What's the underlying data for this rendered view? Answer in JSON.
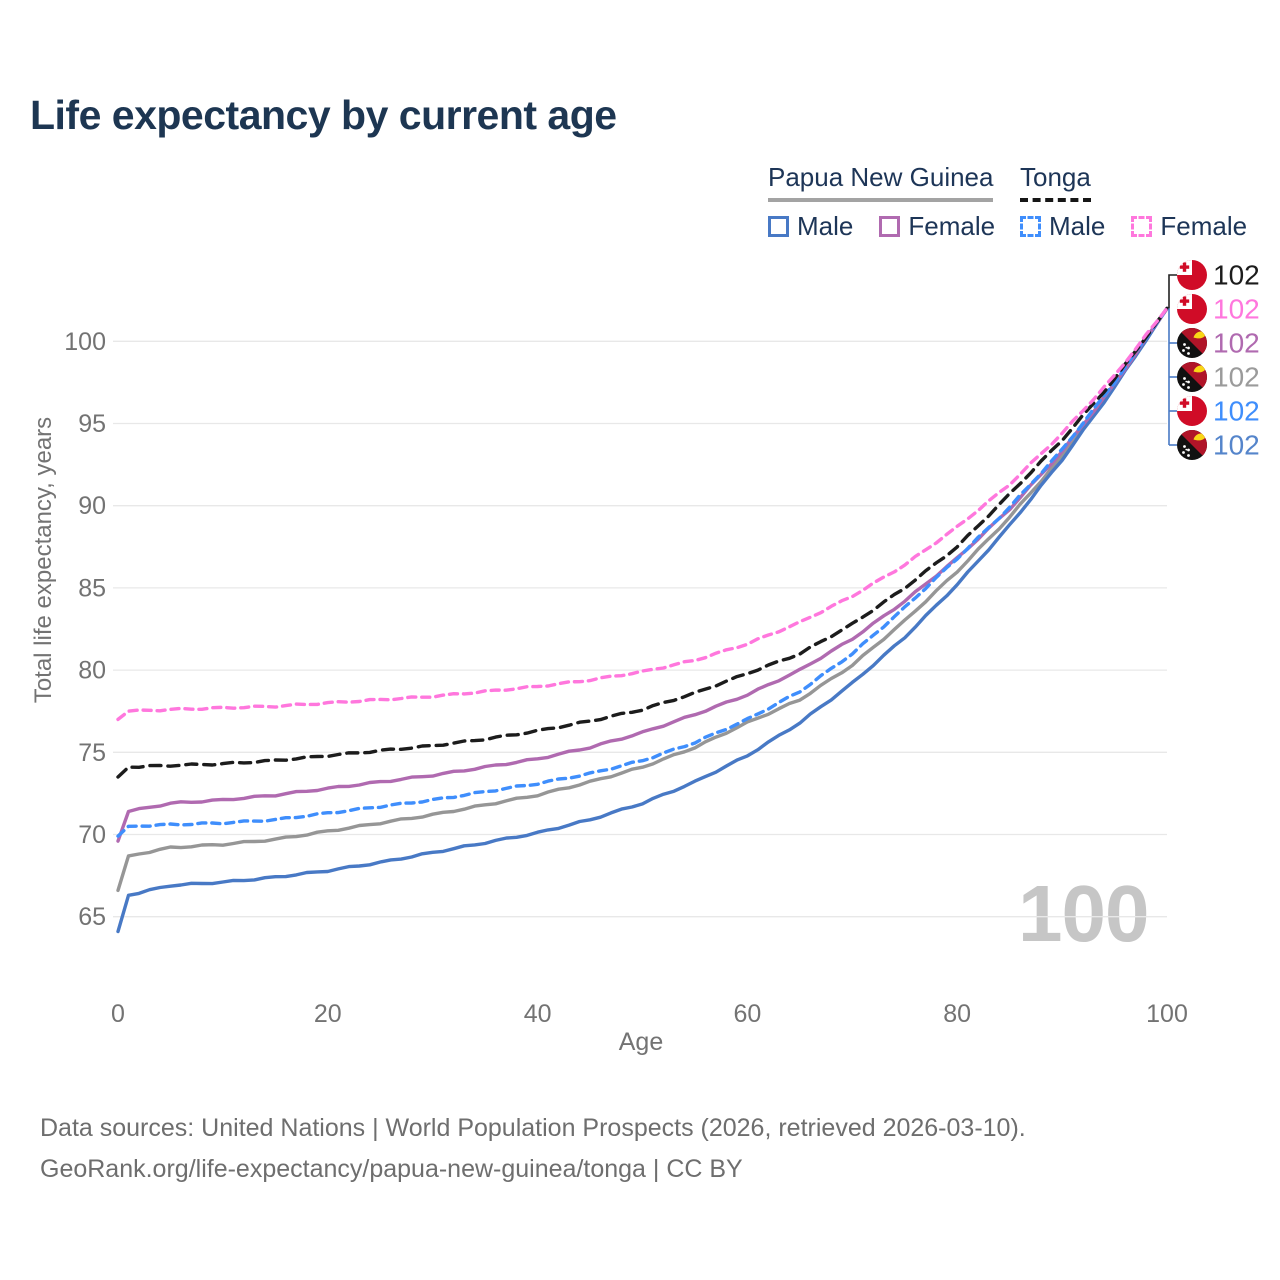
{
  "title": "Life expectancy by current age",
  "watermark": "100",
  "footer": {
    "line1": "Data sources: United Nations | World Population Prospects (2026, retrieved 2026-03-10).",
    "line2": "GeoRank.org/life-expectancy/papua-new-guinea/tonga | CC BY"
  },
  "legend": {
    "groups": [
      {
        "label": "Papua New Guinea",
        "line_style": "solid",
        "underline_color": "#a3a3a3",
        "items": [
          {
            "label": "Male",
            "color": "#4879c5",
            "dashed": false
          },
          {
            "label": "Female",
            "color": "#b06ab0",
            "dashed": false
          }
        ]
      },
      {
        "label": "Tonga",
        "line_style": "dashed",
        "underline_color": "#161616",
        "items": [
          {
            "label": "Male",
            "color": "#3f8efc",
            "dashed": true
          },
          {
            "label": "Female",
            "color": "#ff77dd",
            "dashed": true
          }
        ]
      }
    ]
  },
  "chart_data": {
    "type": "line",
    "title": "Life expectancy by current age",
    "xlabel": "Age",
    "ylabel": "Total life expectancy, years",
    "xlim": [
      0,
      100
    ],
    "ylim": [
      63.5,
      103
    ],
    "x_ticks": [
      0,
      20,
      40,
      60,
      80,
      100
    ],
    "y_ticks": [
      65,
      70,
      75,
      80,
      85,
      90,
      95,
      100
    ],
    "grid": "horizontal",
    "legend_position": "top-right",
    "ages": [
      0,
      1,
      5,
      10,
      15,
      20,
      25,
      30,
      35,
      40,
      45,
      50,
      55,
      60,
      65,
      70,
      75,
      80,
      85,
      90,
      95,
      100
    ],
    "series": [
      {
        "name": "Papua New Guinea",
        "country": "Papua New Guinea",
        "sex": "All",
        "color": "#969696",
        "dashed": false,
        "flag": "papua-new-guinea",
        "label_row": 3,
        "label_color": "#9b9b9b",
        "end_label": "102",
        "values": [
          66.6,
          68.7,
          69.2,
          69.4,
          69.7,
          70.2,
          70.7,
          71.2,
          71.8,
          72.4,
          73.2,
          74.1,
          75.3,
          76.8,
          78.2,
          80.3,
          83.0,
          86.0,
          89.3,
          93.0,
          97.3,
          102
        ]
      },
      {
        "name": "Papua New Guinea Male",
        "country": "Papua New Guinea",
        "sex": "Male",
        "color": "#4879c5",
        "dashed": false,
        "flag": "papua-new-guinea",
        "label_row": 5,
        "label_color": "#5585cb",
        "end_label": "102",
        "values": [
          64.1,
          66.3,
          66.9,
          67.1,
          67.4,
          67.8,
          68.3,
          68.9,
          69.5,
          70.1,
          70.9,
          71.9,
          73.2,
          74.8,
          76.8,
          79.2,
          82.0,
          85.2,
          88.8,
          92.8,
          97.2,
          102
        ]
      },
      {
        "name": "Papua New Guinea Female",
        "country": "Papua New Guinea",
        "sex": "Female",
        "color": "#b06ab0",
        "dashed": false,
        "flag": "papua-new-guinea",
        "label_row": 2,
        "label_color": "#b06ab0",
        "end_label": "102",
        "values": [
          69.6,
          71.4,
          71.9,
          72.1,
          72.4,
          72.8,
          73.2,
          73.6,
          74.1,
          74.6,
          75.3,
          76.2,
          77.3,
          78.5,
          80.0,
          81.9,
          84.2,
          86.8,
          89.8,
          93.3,
          97.4,
          102
        ]
      },
      {
        "name": "Tonga Male",
        "country": "Tonga",
        "sex": "Male",
        "color": "#3f8efc",
        "dashed": true,
        "flag": "tonga",
        "label_row": 4,
        "label_color": "#3f8efc",
        "end_label": "102",
        "values": [
          69.9,
          70.5,
          70.6,
          70.7,
          70.9,
          71.3,
          71.7,
          72.1,
          72.6,
          73.1,
          73.7,
          74.5,
          75.6,
          77.0,
          78.7,
          81.0,
          83.8,
          86.8,
          89.9,
          93.4,
          97.5,
          102
        ]
      },
      {
        "name": "Tonga",
        "country": "Tonga",
        "sex": "All",
        "color": "#1c1c1c",
        "dashed": true,
        "flag": "tonga",
        "label_row": 0,
        "label_color": "#1c1c1c",
        "end_label": "102",
        "values": [
          73.5,
          74.1,
          74.2,
          74.3,
          74.5,
          74.8,
          75.1,
          75.4,
          75.8,
          76.3,
          76.9,
          77.6,
          78.6,
          79.8,
          81.0,
          82.8,
          85.0,
          87.5,
          90.7,
          94.0,
          97.7,
          102
        ]
      },
      {
        "name": "Tonga Female",
        "country": "Tonga",
        "sex": "Female",
        "color": "#ff77dd",
        "dashed": true,
        "flag": "tonga",
        "label_row": 1,
        "label_color": "#ff77dd",
        "end_label": "102",
        "values": [
          77.0,
          77.5,
          77.6,
          77.7,
          77.8,
          78.0,
          78.2,
          78.4,
          78.7,
          79.0,
          79.4,
          79.9,
          80.6,
          81.6,
          82.9,
          84.5,
          86.4,
          88.7,
          91.3,
          94.4,
          97.9,
          102
        ]
      }
    ]
  }
}
